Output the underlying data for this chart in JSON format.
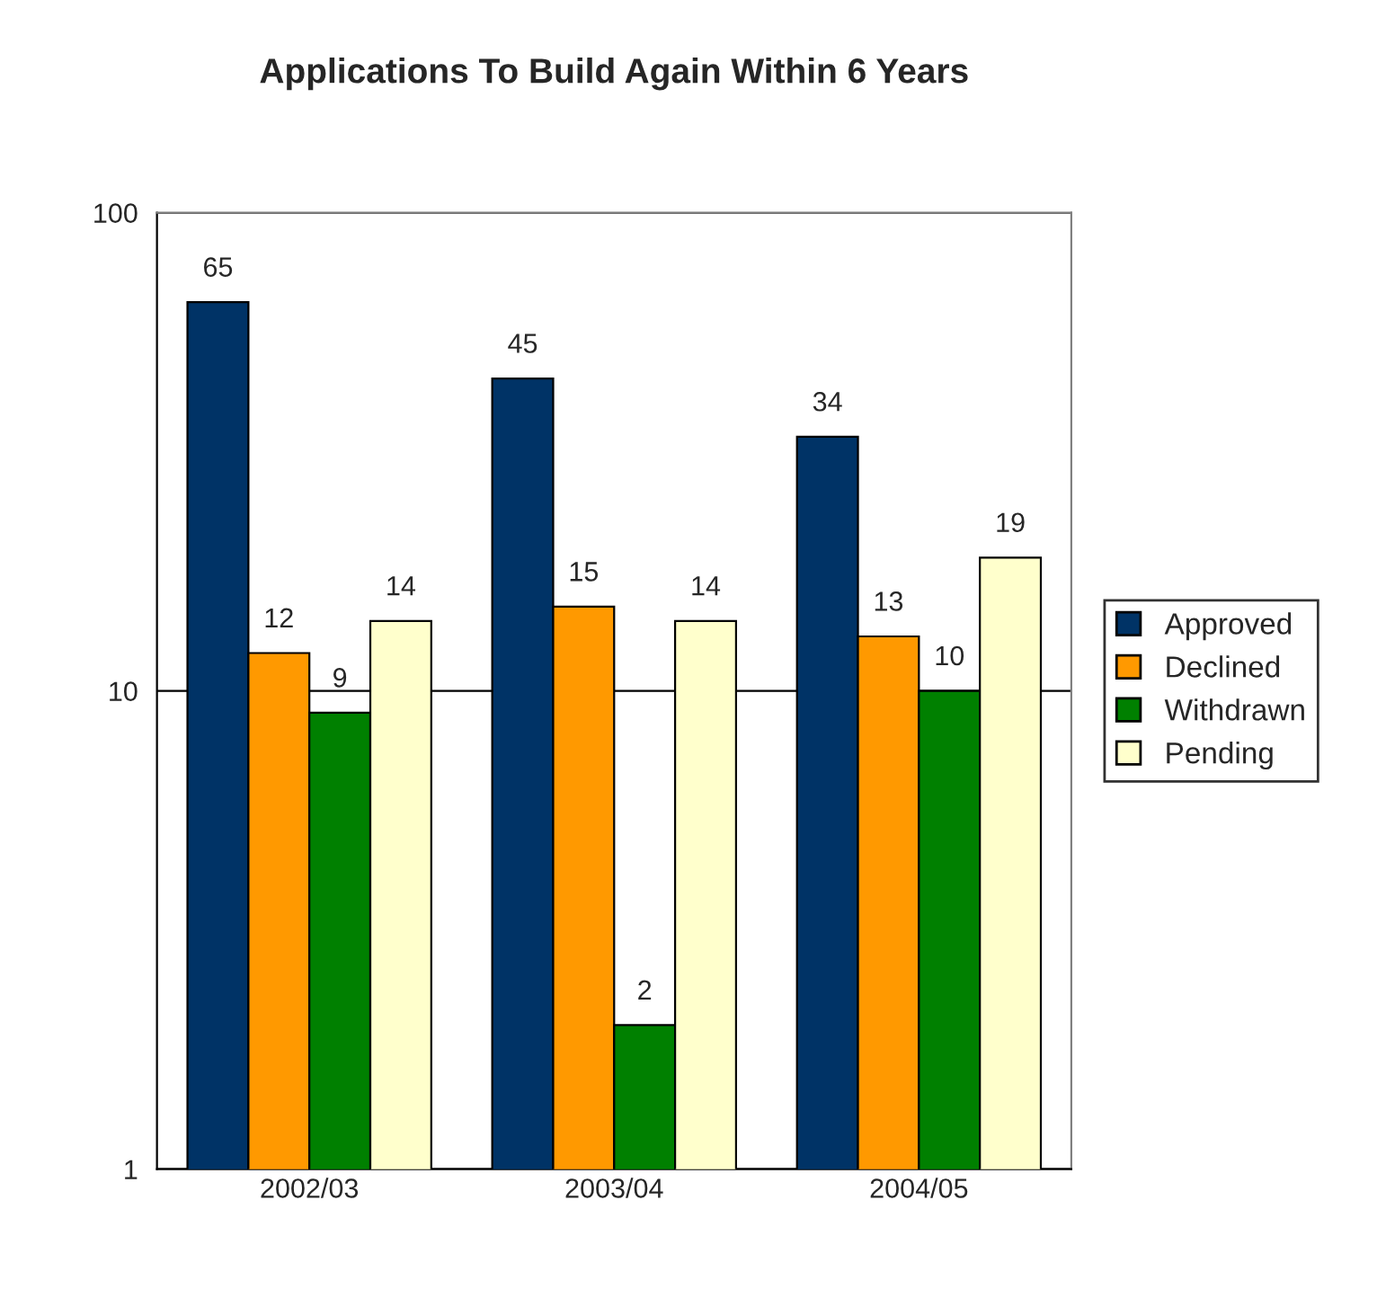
{
  "chart_data": {
    "type": "bar",
    "title": "Applications To Build Again Within 6 Years",
    "categories": [
      "2002/03",
      "2003/04",
      "2004/05"
    ],
    "series": [
      {
        "name": "Approved",
        "color": "#003366",
        "values": [
          65,
          45,
          34
        ]
      },
      {
        "name": "Declined",
        "color": "#ff9900",
        "values": [
          12,
          15,
          13
        ]
      },
      {
        "name": "Withdrawn",
        "color": "#008000",
        "values": [
          9,
          2,
          10
        ]
      },
      {
        "name": "Pending",
        "color": "#ffffcc",
        "values": [
          14,
          14,
          19
        ]
      }
    ],
    "log": true,
    "ylim": [
      1,
      100
    ],
    "yticks": [
      1,
      10,
      100
    ],
    "grid": "y",
    "legend": "right",
    "data_labels": true
  }
}
